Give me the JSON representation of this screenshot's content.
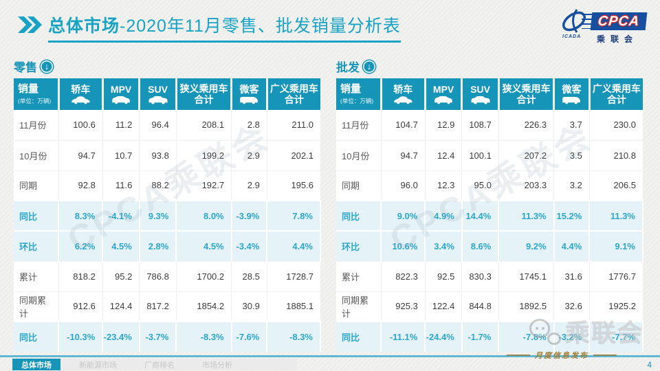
{
  "header": {
    "title_primary": "总体市场",
    "title_secondary": "-2020年11月零售、批发销量分析表",
    "logo": {
      "brand": "CPCA",
      "brand_sub": "乘联会",
      "brand_small": "ICADA"
    }
  },
  "table_columns": [
    {
      "label": "销量",
      "sub": "(单位：万辆)",
      "icon": ""
    },
    {
      "label": "轿车",
      "sub": "",
      "icon": "sedan"
    },
    {
      "label": "MPV",
      "sub": "",
      "icon": "mpv"
    },
    {
      "label": "SUV",
      "sub": "",
      "icon": "suv"
    },
    {
      "label": "狭义乘用车合计",
      "sub": "",
      "icon": ""
    },
    {
      "label": "微客",
      "sub": "",
      "icon": "van"
    },
    {
      "label": "广义乘用车合计",
      "sub": "",
      "icon": ""
    }
  ],
  "tables": [
    {
      "name": "零售",
      "rows": [
        {
          "label": "11月份",
          "type": "normal",
          "values": [
            "100.6",
            "11.2",
            "96.4",
            "208.1",
            "2.8",
            "211.0"
          ]
        },
        {
          "label": "10月份",
          "type": "normal",
          "values": [
            "94.7",
            "10.7",
            "93.8",
            "199.2",
            "2.9",
            "202.1"
          ]
        },
        {
          "label": "同期",
          "type": "normal",
          "values": [
            "92.8",
            "11.6",
            "88.2",
            "192.7",
            "2.9",
            "195.6"
          ]
        },
        {
          "label": "同比",
          "type": "pct",
          "values": [
            "8.3%",
            "-4.1%",
            "9.3%",
            "8.0%",
            "-3.9%",
            "7.8%"
          ]
        },
        {
          "label": "环比",
          "type": "pct",
          "values": [
            "6.2%",
            "4.5%",
            "2.8%",
            "4.5%",
            "-3.4%",
            "4.4%"
          ]
        },
        {
          "label": "累计",
          "type": "normal",
          "values": [
            "818.2",
            "95.2",
            "786.8",
            "1700.2",
            "28.5",
            "1728.7"
          ]
        },
        {
          "label": "同期累计",
          "type": "normal",
          "values": [
            "912.6",
            "124.4",
            "817.2",
            "1854.2",
            "30.9",
            "1885.1"
          ]
        },
        {
          "label": "同比",
          "type": "pct",
          "values": [
            "-10.3%",
            "-23.4%",
            "-3.7%",
            "-8.3%",
            "-7.6%",
            "-8.3%"
          ]
        }
      ]
    },
    {
      "name": "批发",
      "rows": [
        {
          "label": "11月份",
          "type": "normal",
          "values": [
            "104.7",
            "12.9",
            "108.7",
            "226.3",
            "3.7",
            "230.0"
          ]
        },
        {
          "label": "10月份",
          "type": "normal",
          "values": [
            "94.7",
            "12.4",
            "100.1",
            "207.2",
            "3.5",
            "210.8"
          ]
        },
        {
          "label": "同期",
          "type": "normal",
          "values": [
            "96.0",
            "12.3",
            "95.0",
            "203.3",
            "3.2",
            "206.5"
          ]
        },
        {
          "label": "同比",
          "type": "pct",
          "values": [
            "9.0%",
            "4.9%",
            "14.4%",
            "11.3%",
            "15.2%",
            "11.3%"
          ]
        },
        {
          "label": "环比",
          "type": "pct",
          "values": [
            "10.6%",
            "3.4%",
            "8.6%",
            "9.2%",
            "4.4%",
            "9.1%"
          ]
        },
        {
          "label": "累计",
          "type": "normal",
          "values": [
            "822.3",
            "92.5",
            "830.3",
            "1745.1",
            "31.6",
            "1776.7"
          ]
        },
        {
          "label": "同期累计",
          "type": "normal",
          "values": [
            "925.3",
            "122.4",
            "844.8",
            "1892.5",
            "32.6",
            "1925.2"
          ]
        },
        {
          "label": "同比",
          "type": "pct",
          "values": [
            "-11.1%",
            "-24.4%",
            "-1.7%",
            "-7.8%",
            "-3.2%",
            "-7.7%"
          ]
        }
      ]
    }
  ],
  "watermarks": {
    "diagonal": "CPCA乘联会",
    "wechat": "乘联会"
  },
  "footer": {
    "tabs": [
      {
        "label": "总体市场",
        "active": true
      },
      {
        "label": "新能源市场",
        "active": false
      },
      {
        "label": "厂商排名",
        "active": false
      },
      {
        "label": "市场分析",
        "active": false
      }
    ],
    "publish_label": "月度信息发布",
    "page_number": "4"
  },
  "colors": {
    "accent": "#1795b8",
    "accent_light": "#e5f2f8",
    "pct_text": "#2ba7ca",
    "gold": "#9c7c35",
    "logo_blue": "#164fa0",
    "logo_red": "#d42a2a"
  }
}
